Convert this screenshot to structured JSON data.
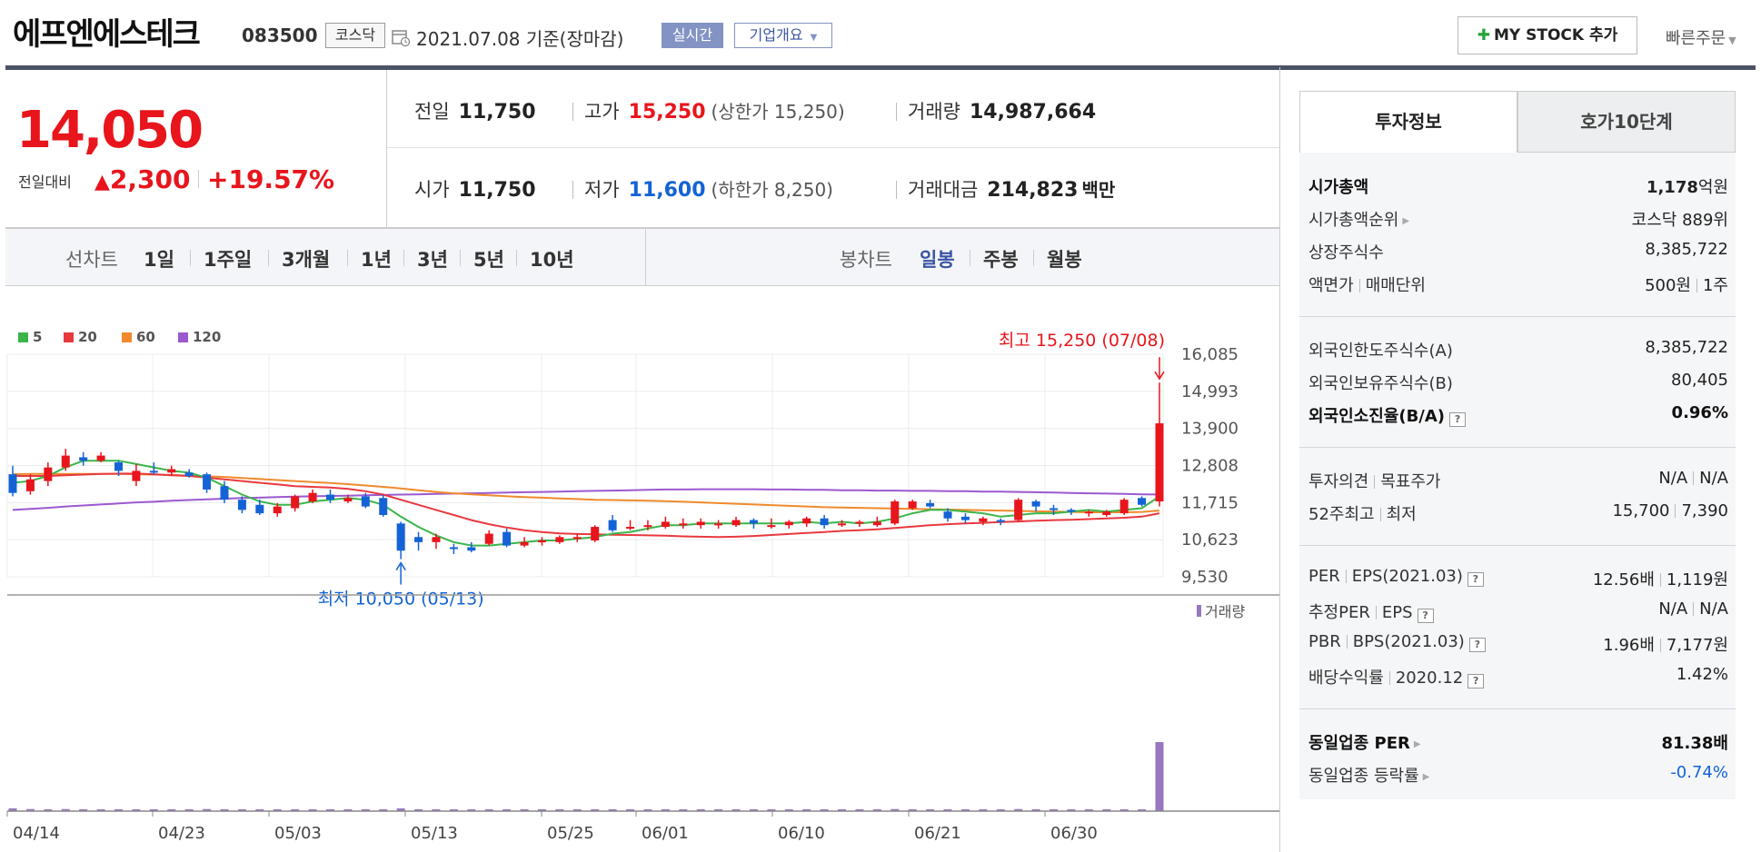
{
  "header": {
    "stock_name": "에프엔에스테크",
    "stock_code": "083500",
    "market": "코스닥",
    "base_date": "2021.07.08 기준(장마감)",
    "realtime_label": "실시간",
    "company_overview_label": "기업개요",
    "mystock_label": "MY STOCK 추가",
    "quick_order_label": "빠른주문",
    "icons": [
      "calendar-icon",
      "plus-icon",
      "chevron-down-icon"
    ]
  },
  "price": {
    "current": "14,050",
    "change_label": "전일대비",
    "change_amount": "2,300",
    "change_rate": "+19.57%",
    "color_up": "#e8151c",
    "color_down": "#1463d6"
  },
  "quote": {
    "prev_close_label": "전일",
    "prev_close": "11,750",
    "high_label": "고가",
    "high": "15,250",
    "upper_limit": "(상한가 15,250)",
    "volume_label": "거래량",
    "volume": "14,987,664",
    "open_label": "시가",
    "open": "11,750",
    "low_label": "저가",
    "low": "11,600",
    "lower_limit": "(하한가 8,250)",
    "turnover_label": "거래대금",
    "turnover": "214,823",
    "turnover_unit": "백만"
  },
  "period_bar": {
    "line_chart_label": "선차트",
    "line_options": [
      "1일",
      "1주일",
      "3개월",
      "1년",
      "3년",
      "5년",
      "10년"
    ],
    "candle_chart_label": "봉차트",
    "candle_options": [
      "일봉",
      "주봉",
      "월봉"
    ],
    "active_candle": "일봉"
  },
  "chart_data": {
    "type": "candlestick",
    "legend": [
      {
        "name": "5",
        "color": "#3bb54a"
      },
      {
        "name": "20",
        "color": "#e8393f"
      },
      {
        "name": "60",
        "color": "#f08a2c"
      },
      {
        "name": "120",
        "color": "#9b59d0"
      }
    ],
    "y_ticks": [
      "16,085",
      "14,993",
      "13,900",
      "12,808",
      "11,715",
      "10,623",
      "9,530"
    ],
    "ylim": [
      9530,
      16085
    ],
    "x_ticks": [
      "04/14",
      "04/23",
      "05/03",
      "05/13",
      "05/25",
      "06/01",
      "06/10",
      "06/21",
      "06/30"
    ],
    "high_annotation": "최고 15,250 (07/08)",
    "low_annotation": "최저 10,050 (05/13)",
    "volume_label": "거래량",
    "candles": [
      [
        12550,
        12000,
        12800,
        11900
      ],
      [
        12050,
        12400,
        12550,
        11950
      ],
      [
        12350,
        12750,
        12900,
        12200
      ],
      [
        12750,
        13100,
        13300,
        12650
      ],
      [
        13050,
        12950,
        13200,
        12800
      ],
      [
        12950,
        13100,
        13200,
        12900
      ],
      [
        12900,
        12650,
        12950,
        12500
      ],
      [
        12350,
        12650,
        12850,
        12200
      ],
      [
        12650,
        12600,
        12900,
        12550
      ],
      [
        12600,
        12700,
        12800,
        12500
      ],
      [
        12600,
        12500,
        12700,
        12450
      ],
      [
        12550,
        12100,
        12600,
        12000
      ],
      [
        12200,
        11800,
        12350,
        11700
      ],
      [
        11800,
        11500,
        11900,
        11400
      ],
      [
        11650,
        11400,
        11800,
        11350
      ],
      [
        11400,
        11600,
        11700,
        11300
      ],
      [
        11550,
        11900,
        11950,
        11450
      ],
      [
        11750,
        12000,
        12100,
        11700
      ],
      [
        11950,
        11800,
        12100,
        11700
      ],
      [
        11750,
        11850,
        11950,
        11700
      ],
      [
        11900,
        11600,
        12000,
        11550
      ],
      [
        11850,
        11350,
        11950,
        11300
      ],
      [
        11100,
        10300,
        11150,
        10050
      ],
      [
        10700,
        10550,
        10850,
        10300
      ],
      [
        10550,
        10700,
        10800,
        10350
      ],
      [
        10400,
        10350,
        10500,
        10200
      ],
      [
        10400,
        10300,
        10550,
        10250
      ],
      [
        10500,
        10800,
        10900,
        10450
      ],
      [
        10850,
        10450,
        10950,
        10400
      ],
      [
        10450,
        10550,
        10700,
        10400
      ],
      [
        10550,
        10600,
        10700,
        10450
      ],
      [
        10550,
        10700,
        10750,
        10500
      ],
      [
        10650,
        10700,
        10800,
        10550
      ],
      [
        10600,
        11000,
        11050,
        10550
      ],
      [
        11200,
        10900,
        11350,
        10850
      ],
      [
        10950,
        11000,
        11200,
        10900
      ],
      [
        11000,
        11050,
        11200,
        10900
      ],
      [
        11000,
        11150,
        11300,
        10950
      ],
      [
        11100,
        11100,
        11250,
        10950
      ],
      [
        11050,
        11150,
        11250,
        10950
      ],
      [
        11050,
        11100,
        11200,
        10950
      ],
      [
        11050,
        11200,
        11300,
        11000
      ],
      [
        11200,
        11100,
        11250,
        10950
      ],
      [
        11050,
        11050,
        11250,
        10950
      ],
      [
        11050,
        11150,
        11200,
        10950
      ],
      [
        11100,
        11250,
        11300,
        11000
      ],
      [
        11250,
        11050,
        11350,
        10950
      ],
      [
        11100,
        11100,
        11200,
        11000
      ],
      [
        11100,
        11150,
        11200,
        11000
      ],
      [
        11050,
        11150,
        11300,
        11000
      ],
      [
        11100,
        11750,
        11800,
        11050
      ],
      [
        11550,
        11750,
        11800,
        11500
      ],
      [
        11700,
        11600,
        11800,
        11550
      ],
      [
        11450,
        11250,
        11550,
        11150
      ],
      [
        11300,
        11200,
        11400,
        11100
      ],
      [
        11150,
        11250,
        11300,
        11050
      ],
      [
        11200,
        11150,
        11250,
        11050
      ],
      [
        11200,
        11800,
        11850,
        11150
      ],
      [
        11750,
        11600,
        11800,
        11450
      ],
      [
        11550,
        11500,
        11650,
        11350
      ],
      [
        11500,
        11450,
        11550,
        11350
      ],
      [
        11400,
        11450,
        11500,
        11300
      ],
      [
        11350,
        11450,
        11500,
        11300
      ],
      [
        11400,
        11800,
        11850,
        11350
      ],
      [
        11850,
        11650,
        11900,
        11600
      ],
      [
        11750,
        14050,
        15250,
        11600
      ]
    ],
    "ma5": [
      12300,
      12350,
      12500,
      12750,
      12950,
      12950,
      12950,
      12850,
      12750,
      12650,
      12600,
      12450,
      12200,
      11950,
      11750,
      11650,
      11650,
      11750,
      11800,
      11850,
      11800,
      11650,
      11300,
      11000,
      10750,
      10550,
      10450,
      10450,
      10500,
      10550,
      10600,
      10600,
      10650,
      10700,
      10800,
      10850,
      10950,
      11050,
      11050,
      11100,
      11100,
      11100,
      11100,
      11100,
      11100,
      11150,
      11100,
      11150,
      11100,
      11150,
      11250,
      11400,
      11500,
      11500,
      11450,
      11400,
      11300,
      11350,
      11400,
      11400,
      11450,
      11500,
      11450,
      11500,
      11550,
      11900
    ],
    "ma20": [
      12500,
      12500,
      12500,
      12520,
      12540,
      12560,
      12570,
      12570,
      12550,
      12520,
      12500,
      12450,
      12400,
      12350,
      12300,
      12250,
      12200,
      12180,
      12160,
      12120,
      12050,
      11950,
      11800,
      11650,
      11500,
      11350,
      11200,
      11080,
      10980,
      10900,
      10850,
      10810,
      10790,
      10780,
      10770,
      10760,
      10750,
      10740,
      10720,
      10710,
      10700,
      10710,
      10730,
      10760,
      10790,
      10820,
      10850,
      10880,
      10900,
      10930,
      10970,
      11010,
      11050,
      11080,
      11100,
      11120,
      11140,
      11160,
      11180,
      11200,
      11210,
      11230,
      11250,
      11270,
      11300,
      11400
    ],
    "ma60": [
      12550,
      12560,
      12560,
      12560,
      12560,
      12560,
      12560,
      12550,
      12540,
      12530,
      12510,
      12490,
      12470,
      12440,
      12410,
      12380,
      12350,
      12320,
      12290,
      12260,
      12220,
      12180,
      12130,
      12080,
      12030,
      11990,
      11960,
      11930,
      11900,
      11880,
      11860,
      11840,
      11820,
      11800,
      11790,
      11780,
      11770,
      11760,
      11740,
      11720,
      11700,
      11680,
      11660,
      11640,
      11620,
      11600,
      11580,
      11570,
      11560,
      11550,
      11540,
      11530,
      11520,
      11510,
      11500,
      11490,
      11480,
      11470,
      11460,
      11450,
      11440,
      11430,
      11430,
      11430,
      11440,
      11480
    ],
    "ma120": [
      11500,
      11530,
      11560,
      11600,
      11630,
      11660,
      11690,
      11720,
      11740,
      11770,
      11790,
      11810,
      11830,
      11850,
      11860,
      11880,
      11890,
      11900,
      11910,
      11920,
      11930,
      11940,
      11950,
      11960,
      11970,
      11980,
      11990,
      12000,
      12010,
      12020,
      12030,
      12040,
      12050,
      12060,
      12070,
      12080,
      12090,
      12100,
      12100,
      12110,
      12110,
      12110,
      12110,
      12100,
      12100,
      12090,
      12090,
      12080,
      12080,
      12070,
      12070,
      12060,
      12060,
      12050,
      12050,
      12040,
      12040,
      12030,
      12020,
      12010,
      12000,
      11990,
      11980,
      11970,
      11960,
      11950
    ],
    "volumes": [
      0.04,
      0.03,
      0.02,
      0.03,
      0.02,
      0.02,
      0.02,
      0.01,
      0.02,
      0.02,
      0.02,
      0.03,
      0.02,
      0.02,
      0.01,
      0.01,
      0.02,
      0.01,
      0.02,
      0.01,
      0.02,
      0.02,
      0.04,
      0.02,
      0.02,
      0.01,
      0.01,
      0.02,
      0.02,
      0.01,
      0.01,
      0.01,
      0.01,
      0.02,
      0.02,
      0.01,
      0.01,
      0.01,
      0.01,
      0.01,
      0.01,
      0.01,
      0.01,
      0.01,
      0.01,
      0.01,
      0.01,
      0.01,
      0.01,
      0.01,
      0.03,
      0.02,
      0.02,
      0.01,
      0.01,
      0.01,
      0.01,
      0.03,
      0.02,
      0.01,
      0.01,
      0.01,
      0.01,
      0.02,
      0.02,
      1.0
    ]
  },
  "info_panel": {
    "tab_invest": "투자정보",
    "tab_orderbook": "호가10단계",
    "market_cap_label": "시가총액",
    "market_cap": "1,178",
    "market_cap_unit": "억원",
    "market_cap_rank_label": "시가총액순위",
    "market_cap_rank": "코스닥 889위",
    "shares_label": "상장주식수",
    "shares": "8,385,722",
    "par_label": "액면가",
    "lot_label": "매매단위",
    "par": "500원",
    "lot": "1주",
    "foreign_limit_label": "외국인한도주식수(A)",
    "foreign_limit": "8,385,722",
    "foreign_hold_label": "외국인보유주식수(B)",
    "foreign_hold": "80,405",
    "foreign_ratio_label": "외국인소진율(B/A)",
    "foreign_ratio": "0.96%",
    "opinion_label": "투자의견",
    "target_label": "목표주가",
    "opinion": "N/A",
    "target": "N/A",
    "w52_high_label": "52주최고",
    "w52_low_label": "최저",
    "w52_high": "15,700",
    "w52_low": "7,390",
    "per_label": "PER",
    "eps_label": "EPS(2021.03)",
    "per": "12.56배",
    "eps": "1,119원",
    "est_per_label": "추정PER",
    "est_eps_label": "EPS",
    "est_per": "N/A",
    "est_eps": "N/A",
    "pbr_label": "PBR",
    "bps_label": "BPS(2021.03)",
    "pbr": "1.96배",
    "bps": "7,177원",
    "div_label": "배당수익률",
    "div_year": "2020.12",
    "div": "1.42%",
    "sector_per_label": "동일업종 PER",
    "sector_per": "81.38배",
    "sector_rate_label": "동일업종 등락률",
    "sector_rate": "-0.74%"
  }
}
